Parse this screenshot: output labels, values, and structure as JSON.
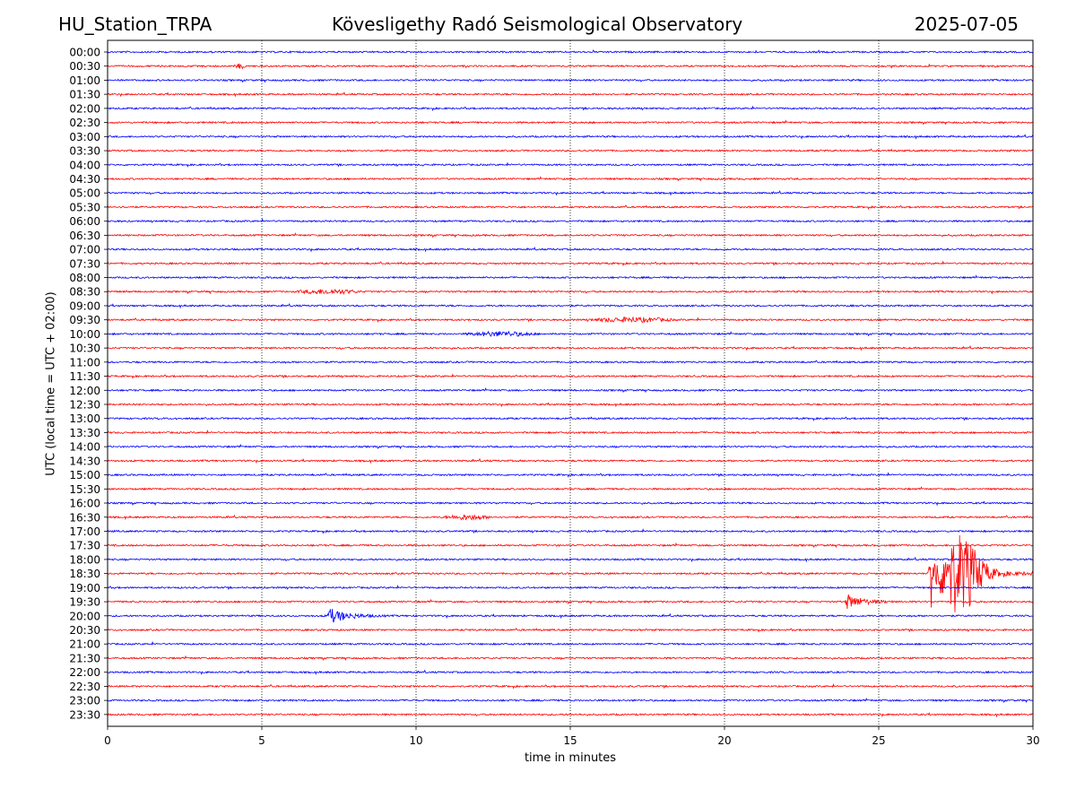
{
  "header": {
    "station": "HU_Station_TRPA",
    "title": "Kövesligethy Radó Seismological Observatory",
    "date": "2025-07-05"
  },
  "chart_data": {
    "type": "line",
    "subtype": "helicorder",
    "ylabel": "UTC (local time = UTC + 02:00)",
    "xlabel": "time in minutes",
    "xlim": [
      0,
      30
    ],
    "xticks": [
      0,
      5,
      10,
      15,
      20,
      25,
      30
    ],
    "grid": "vertical dotted lines at each x tick",
    "rows": [
      "00:00",
      "00:30",
      "01:00",
      "01:30",
      "02:00",
      "02:30",
      "03:00",
      "03:30",
      "04:00",
      "04:30",
      "05:00",
      "05:30",
      "06:00",
      "06:30",
      "07:00",
      "07:30",
      "08:00",
      "08:30",
      "09:00",
      "09:30",
      "10:00",
      "10:30",
      "11:00",
      "11:30",
      "12:00",
      "12:30",
      "13:00",
      "13:30",
      "14:00",
      "14:30",
      "15:00",
      "15:30",
      "16:00",
      "16:30",
      "17:00",
      "17:30",
      "18:00",
      "18:30",
      "19:00",
      "19:30",
      "20:00",
      "20:30",
      "21:00",
      "21:30",
      "22:00",
      "22:30",
      "23:00",
      "23:30"
    ],
    "colors": [
      "#0000ff",
      "#ff0000"
    ],
    "events": [
      {
        "row": "18:30",
        "start_min": 26.6,
        "end_min": 30.0,
        "amplitude": "very large"
      },
      {
        "row": "19:30",
        "start_min": 23.9,
        "end_min": 25.5,
        "amplitude": "moderate"
      },
      {
        "row": "20:00",
        "start_min": 7.1,
        "end_min": 9.0,
        "amplitude": "moderate"
      },
      {
        "row": "08:30",
        "start_min": 6.0,
        "end_min": 8.3,
        "amplitude": "small"
      },
      {
        "row": "10:00",
        "start_min": 11.5,
        "end_min": 14.0,
        "amplitude": "small"
      },
      {
        "row": "16:30",
        "start_min": 10.8,
        "end_min": 12.5,
        "amplitude": "small"
      },
      {
        "row": "09:30",
        "start_min": 15.5,
        "end_min": 18.5,
        "amplitude": "small"
      },
      {
        "row": "00:30",
        "start_min": 4.1,
        "end_min": 4.5,
        "amplitude": "small"
      }
    ]
  }
}
